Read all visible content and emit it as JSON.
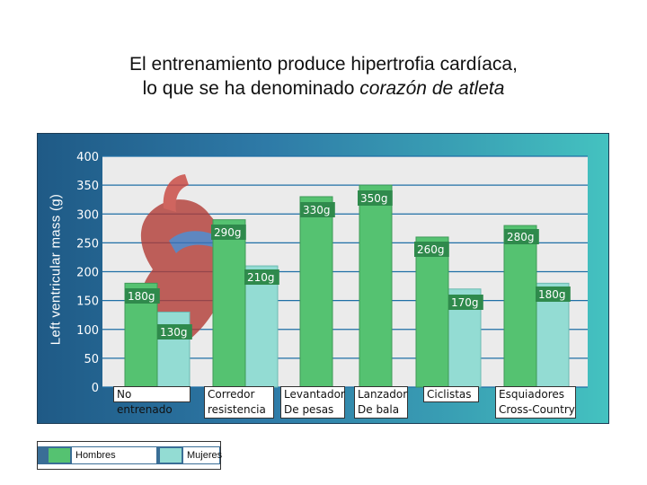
{
  "title": {
    "line1": "El entrenamiento produce hipertrofia cardíaca,",
    "line2_plain": "lo que se ha denominado ",
    "line2_italic": "corazón de atleta"
  },
  "legend": {
    "men_label": "Hombres",
    "women_label": "Mujeres"
  },
  "colors": {
    "men": "#55c271",
    "women": "#93dcd3",
    "men_edge": "#3f9a58",
    "women_edge": "#6cbab1",
    "label": "#2f8a4c",
    "tick": "#ffffff",
    "grid": "#1f6fa6"
  },
  "chart_data": {
    "type": "bar",
    "ylabel": "Left ventricular mass (g)",
    "xlabel": "",
    "ylim": [
      0,
      400
    ],
    "yticks": [
      0,
      50,
      100,
      150,
      200,
      250,
      300,
      350,
      400
    ],
    "grid": true,
    "legend_position": "bottom-left",
    "categories": [
      [
        "No entrenado"
      ],
      [
        "Corredor",
        "resistencia"
      ],
      [
        "Levantador",
        "De pesas"
      ],
      [
        "Lanzador",
        "De bala"
      ],
      [
        "Ciclistas"
      ],
      [
        "Esquiadores",
        "Cross-Country"
      ]
    ],
    "series": [
      {
        "name": "Hombres",
        "values": [
          180,
          290,
          330,
          350,
          260,
          280
        ]
      },
      {
        "name": "Mujeres",
        "values": [
          130,
          210,
          null,
          null,
          170,
          180
        ]
      }
    ],
    "annotations": [
      {
        "category": 0,
        "men": "180g",
        "women": "130g"
      },
      {
        "category": 1,
        "men": "290g",
        "women": "210g"
      },
      {
        "category": 2,
        "men": "330g"
      },
      {
        "category": 3,
        "men": "350g"
      },
      {
        "category": 4,
        "men": "260g",
        "women": "170g"
      },
      {
        "category": 5,
        "men": "280g",
        "women": "180g"
      }
    ]
  }
}
